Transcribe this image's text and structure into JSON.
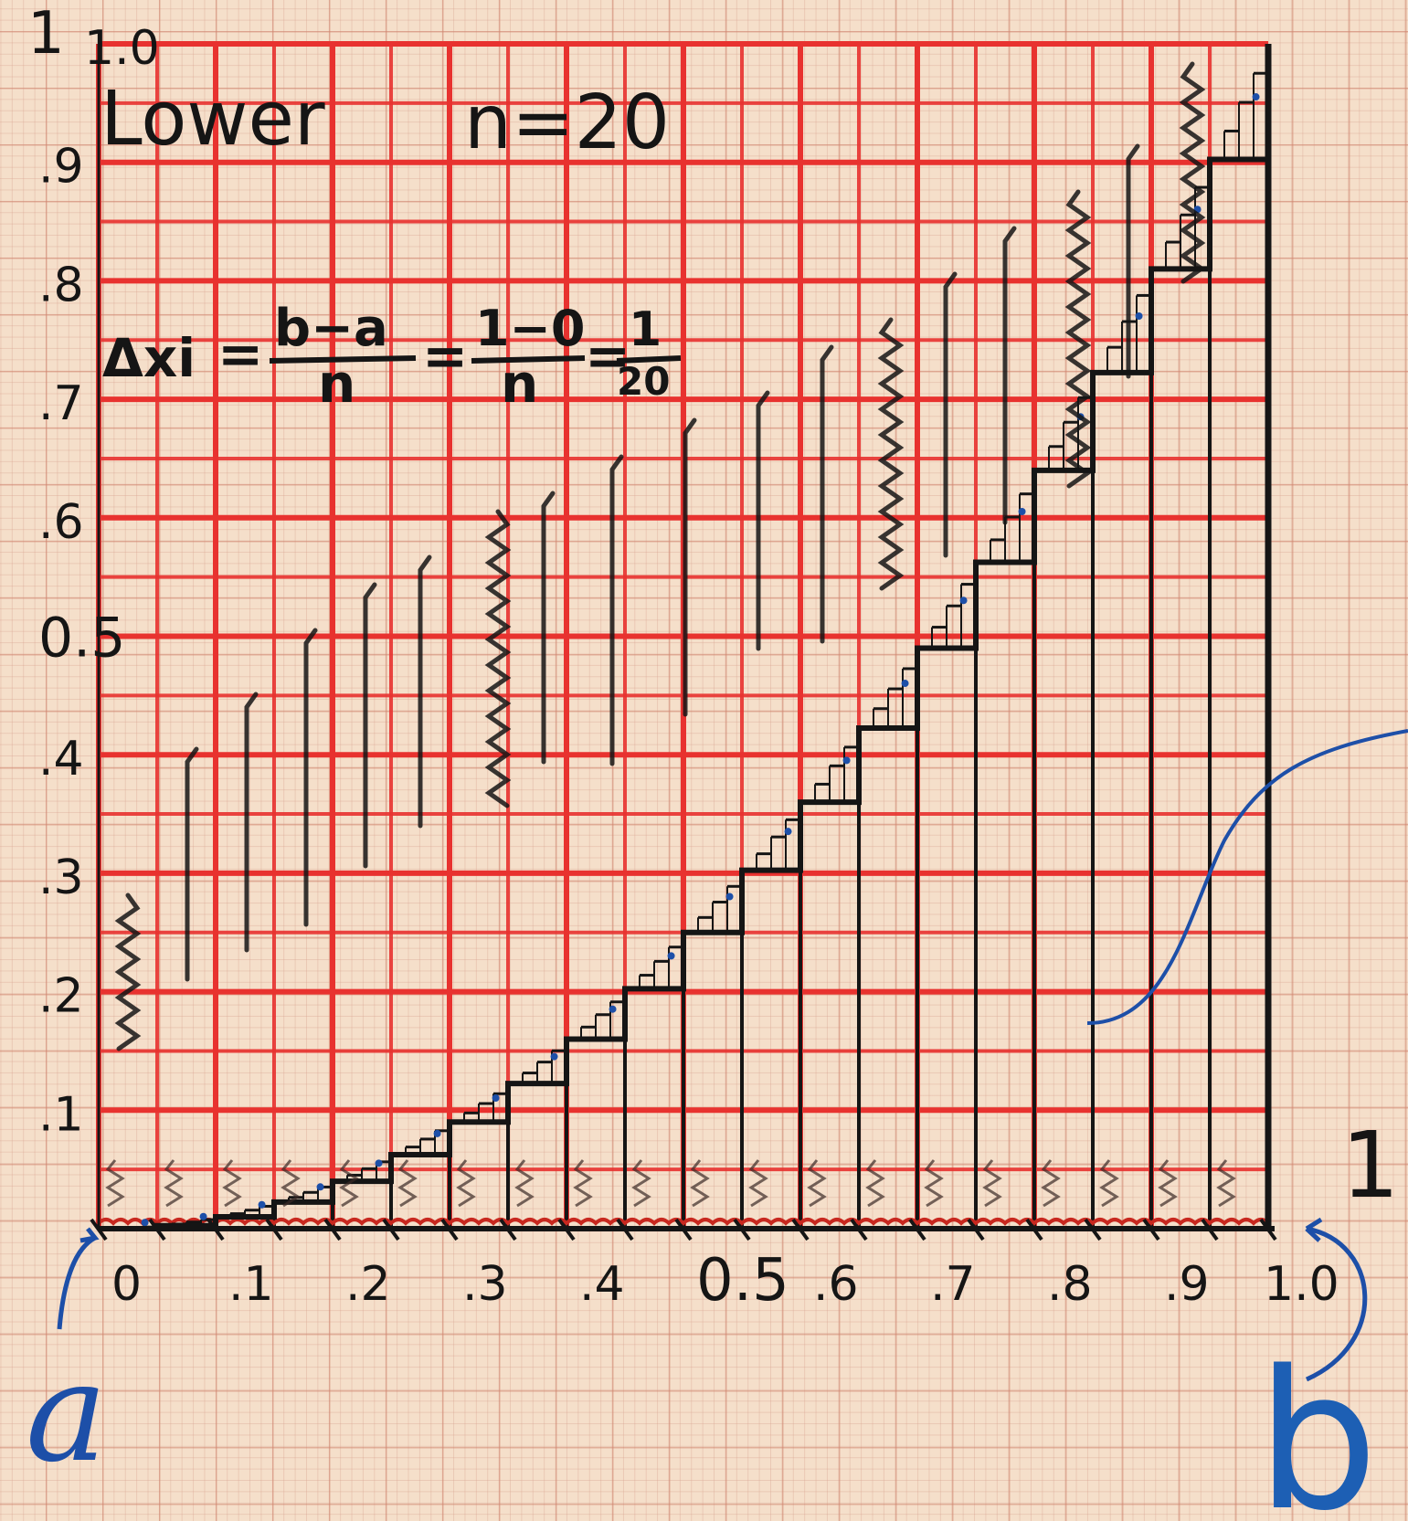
{
  "title": "Lower",
  "n_label": "n=20",
  "formula": {
    "delta": "Δxi",
    "eq1": "=",
    "frac1_num": "b−a",
    "frac1_den": "n",
    "eq2": "=",
    "frac2_num": "1−0",
    "frac2_den": "n",
    "eq3": "=",
    "frac3_num": "1",
    "frac3_den": "20"
  },
  "y_ticks": [
    ".1",
    ".2",
    ".3",
    ".4",
    "0.5",
    ".6",
    ".7",
    ".8",
    ".9",
    "1.0"
  ],
  "x_ticks": [
    "0",
    ".1",
    ".2",
    ".3",
    ".4",
    "0.5",
    ".6",
    ".7",
    ".8",
    ".9",
    "1.0"
  ],
  "endpoint_a": "a",
  "endpoint_b": "b",
  "top_mark": "1",
  "right_mark": "1",
  "colors": {
    "paper": "#f5dfca",
    "grid": "#e8322f",
    "ink": "#151515",
    "blue_ink": "#1d4fa8"
  }
}
